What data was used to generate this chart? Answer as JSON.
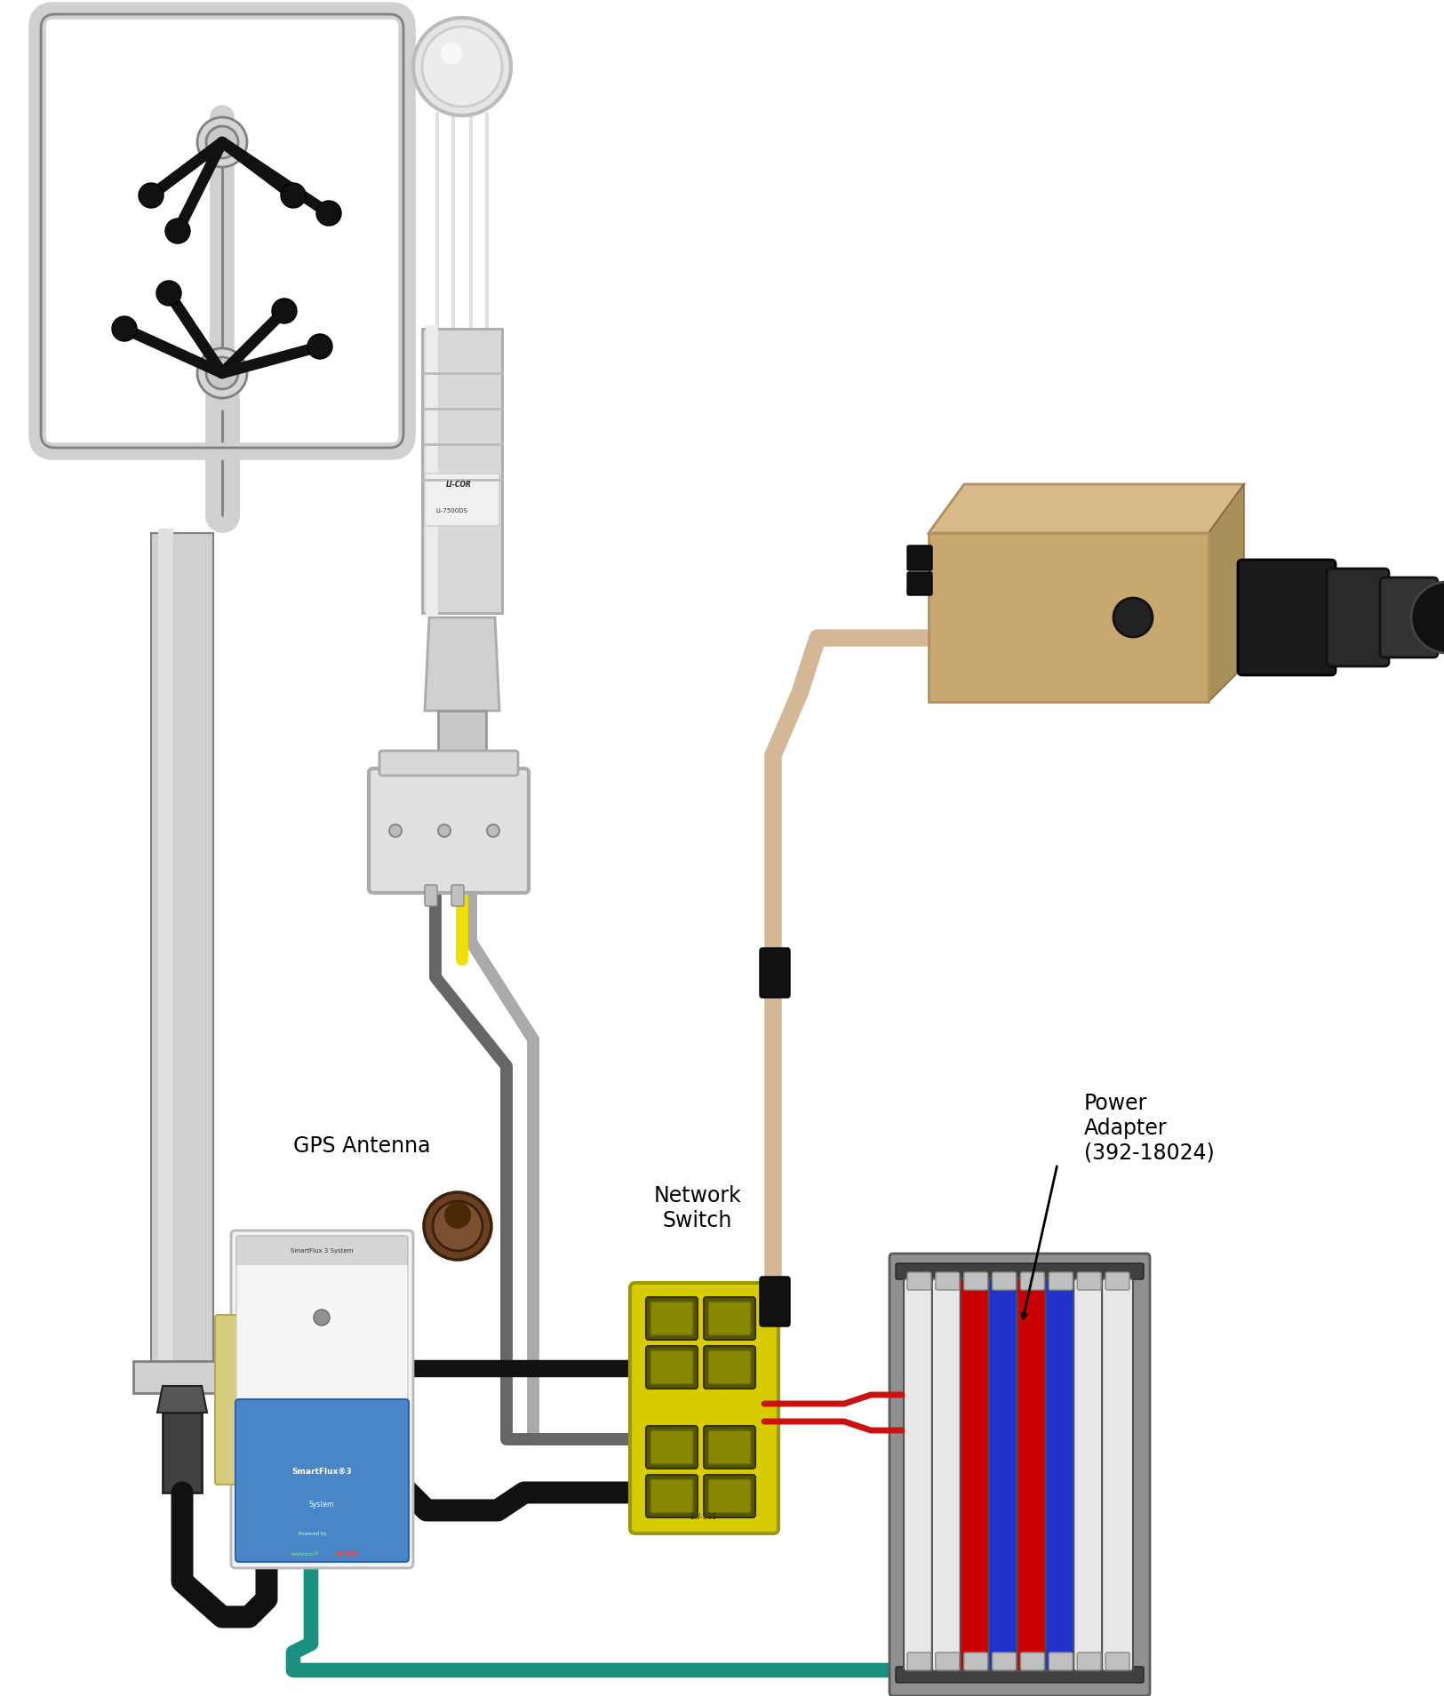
{
  "bg_color": "#ffffff",
  "figsize": [
    16.25,
    19.09
  ],
  "dpi": 100,
  "colors": {
    "pole_light": "#d0d0d0",
    "pole_mid": "#b8b8b8",
    "pole_dark": "#909090",
    "pole_edge": "#808080",
    "frame_light": "#cccccc",
    "frame_edge": "#aaaaaa",
    "hub_light": "#d5d5d5",
    "transducer_black": "#111111",
    "sonic_body": "#c8c8c8",
    "sonic_edge": "#909090",
    "sonic_white": "#e8e8e8",
    "yellow_cable": "#f0e000",
    "black_cable": "#111111",
    "gray_cable_light": "#aaaaaa",
    "gray_cable_dark": "#666666",
    "beige_cable": "#d4b896",
    "teal_cable": "#1a9080",
    "red_cable": "#cc1111",
    "jbox_light": "#e0e0e0",
    "jbox_edge": "#aaaaaa",
    "switch_yellow": "#d8cc00",
    "switch_green": "#228800",
    "camera_tan": "#c8a870",
    "camera_side": "#b09060",
    "camera_dark": "#2a2a2a",
    "sf_white": "#f2f2f2",
    "sf_blue": "#4a85c8",
    "sf_gray": "#cccccc",
    "sf_yellow_tab": "#d8cc80",
    "gps_brown": "#6b4020",
    "pa_gray": "#909090",
    "pa_gray_dark": "#5a5a5a",
    "pa_white": "#e8e8e8",
    "pa_red": "#cc0000",
    "pa_blue": "#2233cc",
    "text_black": "#000000",
    "connector_black": "#111111"
  },
  "labels": {
    "gps_antenna": "GPS Antenna",
    "network_switch": "Network\nSwitch",
    "power_adapter": "Power\nAdapter\n(392-18024)"
  }
}
